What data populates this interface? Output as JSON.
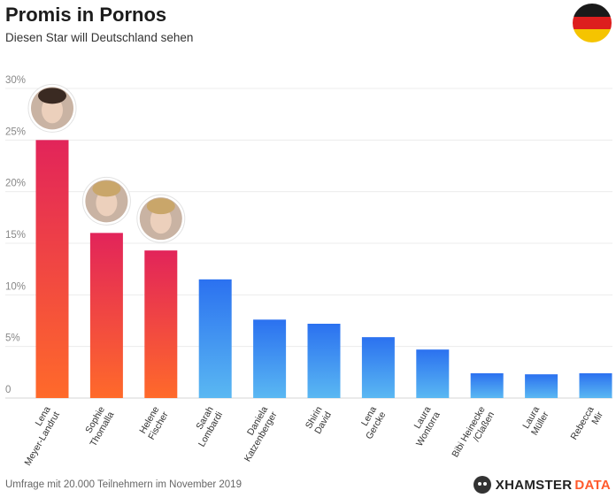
{
  "header": {
    "title": "Promis in Pornos",
    "subtitle": "Diesen Star will Deutschland sehen"
  },
  "footer": {
    "note": "Umfrage mit 20.000 Teilnehmern im November 2019",
    "brand_part1": "XHAMSTER",
    "brand_part2": "DATA"
  },
  "colors": {
    "highlight_top": "#e2245a",
    "highlight_bottom": "#ff6a2a",
    "normal_top": "#2b71f0",
    "normal_bottom": "#5ab8f2",
    "flag_black": "#1a1a1a",
    "flag_red": "#dd1e1e",
    "flag_gold": "#f5c400"
  },
  "chart_data": {
    "type": "bar",
    "title": "Promis in Pornos",
    "subtitle": "Diesen Star will Deutschland sehen",
    "categories": [
      [
        "Lena",
        "Meyer-Landrut"
      ],
      [
        "Sophie",
        "Thomalla"
      ],
      [
        "Helene",
        "Fischer"
      ],
      [
        "Sarah",
        "Lombardi"
      ],
      [
        "Daniela",
        "Katzenberger"
      ],
      [
        "Shirin",
        "David"
      ],
      [
        "Lena",
        "Gercke"
      ],
      [
        "Laura",
        "Wontorra"
      ],
      [
        "Bibi Heinecke",
        "/Claßen"
      ],
      [
        "Laura",
        "Müller"
      ],
      [
        "Rebecca",
        "Mir"
      ]
    ],
    "values": [
      25.0,
      16.0,
      14.3,
      11.5,
      7.6,
      7.2,
      5.9,
      4.7,
      2.4,
      2.3,
      2.4
    ],
    "highlighted": [
      true,
      true,
      true,
      false,
      false,
      false,
      false,
      false,
      false,
      false,
      false
    ],
    "y_ticks": [
      "0",
      "5%",
      "10%",
      "15%",
      "20%",
      "25%",
      "30%"
    ],
    "ylim": [
      0,
      30
    ],
    "grid": true,
    "xlabel": "",
    "ylabel": ""
  }
}
